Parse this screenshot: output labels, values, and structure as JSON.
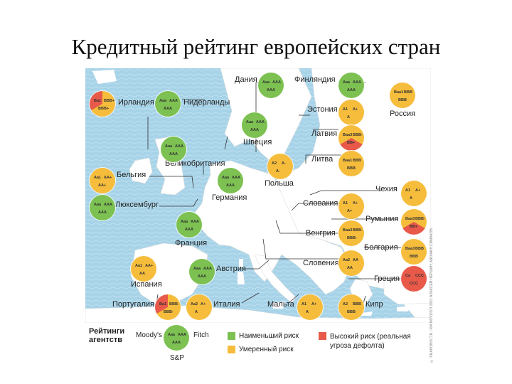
{
  "title": "Кредитный рейтинг европейских стран",
  "colors": {
    "green": "#7cc151",
    "yellow": "#f6bd3c",
    "red": "#e8594a",
    "sea": "#a7d3e8",
    "land": "#ffffff"
  },
  "countries": [
    {
      "name": "Дания",
      "ratings": [
        "Aaa",
        "AAA",
        "AAA"
      ],
      "risk": [
        "green",
        "green",
        "green"
      ]
    },
    {
      "name": "Финляндия",
      "ratings": [
        "Aaa",
        "AAA",
        "AAA"
      ],
      "risk": [
        "green",
        "green",
        "green"
      ]
    },
    {
      "name": "Ирландия",
      "ratings": [
        "Ba1",
        "BBB+",
        "BBB+"
      ],
      "risk": [
        "red",
        "yellow",
        "yellow"
      ]
    },
    {
      "name": "Нидерланды",
      "ratings": [
        "Aaa",
        "AAA",
        "AAA"
      ],
      "risk": [
        "green",
        "green",
        "green"
      ]
    },
    {
      "name": "Россия",
      "ratings": [
        "Baa1",
        "BBB",
        "BBB"
      ],
      "risk": [
        "yellow",
        "yellow",
        "yellow"
      ]
    },
    {
      "name": "Эстония",
      "ratings": [
        "A1",
        "A+",
        "A"
      ],
      "risk": [
        "yellow",
        "yellow",
        "yellow"
      ]
    },
    {
      "name": "Швеция",
      "ratings": [
        "Aaa",
        "AAA",
        "AAA"
      ],
      "risk": [
        "green",
        "green",
        "green"
      ]
    },
    {
      "name": "Латвия",
      "ratings": [
        "Baa3",
        "BBB-",
        "BB+"
      ],
      "risk": [
        "yellow",
        "yellow",
        "red"
      ]
    },
    {
      "name": "Великобритания",
      "ratings": [
        "Aaa",
        "AAA",
        "AAA"
      ],
      "risk": [
        "green",
        "green",
        "green"
      ]
    },
    {
      "name": "Польша",
      "ratings": [
        "A2",
        "A-",
        "A-"
      ],
      "risk": [
        "yellow",
        "yellow",
        "yellow"
      ]
    },
    {
      "name": "Литва",
      "ratings": [
        "Baa1",
        "BBB",
        "BBB"
      ],
      "risk": [
        "yellow",
        "yellow",
        "yellow"
      ]
    },
    {
      "name": "Бельгия",
      "ratings": [
        "Aa1",
        "AA+",
        "AA+"
      ],
      "risk": [
        "yellow",
        "yellow",
        "yellow"
      ]
    },
    {
      "name": "Германия",
      "ratings": [
        "Aaa",
        "AAA",
        "AAA"
      ],
      "risk": [
        "green",
        "green",
        "green"
      ]
    },
    {
      "name": "Чехия",
      "ratings": [
        "A1",
        "A+",
        "A"
      ],
      "risk": [
        "yellow",
        "yellow",
        "yellow"
      ]
    },
    {
      "name": "Люксембург",
      "ratings": [
        "Aaa",
        "AAA",
        "AAA"
      ],
      "risk": [
        "green",
        "green",
        "green"
      ]
    },
    {
      "name": "Словакия",
      "ratings": [
        "A1",
        "A+",
        "A+"
      ],
      "risk": [
        "yellow",
        "yellow",
        "yellow"
      ]
    },
    {
      "name": "Румыния",
      "ratings": [
        "Baa3",
        "BBB-",
        "BB+"
      ],
      "risk": [
        "yellow",
        "yellow",
        "red"
      ]
    },
    {
      "name": "Франция",
      "ratings": [
        "Aaa",
        "AAA",
        "AAA"
      ],
      "risk": [
        "green",
        "green",
        "green"
      ]
    },
    {
      "name": "Венгрия",
      "ratings": [
        "Baa3",
        "BBB-",
        "BBB-"
      ],
      "risk": [
        "yellow",
        "yellow",
        "yellow"
      ]
    },
    {
      "name": "Болгария",
      "ratings": [
        "Baa3",
        "BBB",
        "BBB"
      ],
      "risk": [
        "yellow",
        "yellow",
        "yellow"
      ]
    },
    {
      "name": "Испания",
      "ratings": [
        "Aa1",
        "AA+",
        "AA"
      ],
      "risk": [
        "yellow",
        "yellow",
        "yellow"
      ]
    },
    {
      "name": "Австрия",
      "ratings": [
        "Aaa",
        "AAA",
        "AAA"
      ],
      "risk": [
        "green",
        "green",
        "green"
      ]
    },
    {
      "name": "Словения",
      "ratings": [
        "Aa2",
        "AA",
        "AA"
      ],
      "risk": [
        "yellow",
        "yellow",
        "yellow"
      ]
    },
    {
      "name": "Греция",
      "ratings": [
        "Ca",
        "CCC",
        "CCC"
      ],
      "risk": [
        "red",
        "red",
        "red"
      ]
    },
    {
      "name": "Португалия",
      "ratings": [
        "Ba1",
        "BBB-",
        "BBB-"
      ],
      "risk": [
        "red",
        "yellow",
        "yellow"
      ]
    },
    {
      "name": "Италия",
      "ratings": [
        "Aa2",
        "A+",
        "A"
      ],
      "risk": [
        "yellow",
        "yellow",
        "yellow"
      ]
    },
    {
      "name": "Мальта",
      "ratings": [
        "A1",
        "A+",
        "A"
      ],
      "risk": [
        "yellow",
        "yellow",
        "yellow"
      ]
    },
    {
      "name": "Кипр",
      "ratings": [
        "A2",
        "BBB",
        "BBB"
      ],
      "risk": [
        "yellow",
        "yellow",
        "yellow"
      ]
    }
  ],
  "legend": {
    "title": "Рейтинги агентств",
    "agencies": [
      "Moody's",
      "Fitch",
      "S&P"
    ],
    "sample_ratings": [
      "Aaa",
      "AAA",
      "AAA"
    ],
    "low_risk": "Наименьший риск",
    "moderate_risk": "Умеренный риск",
    "high_risk": "Высокий риск (реальная угроза дефолта)"
  },
  "credit": "© РИАНОВОСТИ / RIA NOVOSTI 2011 АЛЕКСЕЙ ЛЕРШИН, МИХАИЛ СИМАКОВ"
}
